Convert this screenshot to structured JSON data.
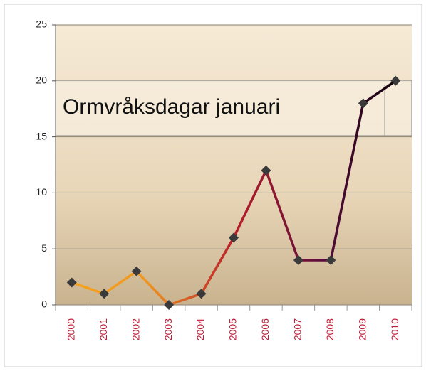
{
  "chart_data": {
    "type": "line",
    "title": "Ormvråksdagar januari",
    "categories": [
      "2000",
      "2001",
      "2002",
      "2003",
      "2004",
      "2005",
      "2006",
      "2007",
      "2008",
      "2009",
      "2010"
    ],
    "values": [
      2,
      1,
      3,
      0,
      1,
      6,
      12,
      4,
      4,
      18,
      20
    ],
    "line_colors": [
      "#f5a623",
      "#f0961e",
      "#b8202a",
      "#5a0c3c",
      "#000000"
    ],
    "marker_color": "#3a3a3a",
    "ylim": [
      0,
      25
    ],
    "yticks": [
      0,
      5,
      10,
      15,
      20,
      25
    ],
    "grid": true
  }
}
